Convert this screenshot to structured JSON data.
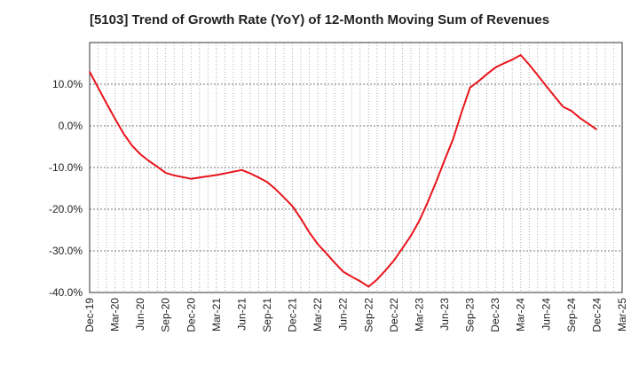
{
  "chart_data": {
    "type": "line",
    "title": "[5103]  Trend of Growth Rate (YoY) of 12-Month Moving Sum of Revenues",
    "xlabel": "",
    "ylabel": "",
    "ylim": [
      -40,
      20
    ],
    "grid": true,
    "legend": "none",
    "x_ticks": [
      "Dec-19",
      "Mar-20",
      "Jun-20",
      "Sep-20",
      "Dec-20",
      "Mar-21",
      "Jun-21",
      "Sep-21",
      "Dec-21",
      "Mar-22",
      "Jun-22",
      "Sep-22",
      "Dec-22",
      "Mar-23",
      "Jun-23",
      "Sep-23",
      "Dec-23",
      "Mar-24",
      "Jun-24",
      "Sep-24",
      "Dec-24",
      "Mar-25"
    ],
    "y_ticks": [
      -40,
      -30,
      -20,
      -10,
      0,
      10
    ],
    "y_tick_labels": [
      "-40.0%",
      "-30.0%",
      "-20.0%",
      "-10.0%",
      "0.0%",
      "10.0%"
    ],
    "series": [
      {
        "color": "#e8141b",
        "x": [
          "Dec-19",
          "Jan-20",
          "Feb-20",
          "Mar-20",
          "Apr-20",
          "May-20",
          "Jun-20",
          "Jul-20",
          "Aug-20",
          "Sep-20",
          "Oct-20",
          "Nov-20",
          "Dec-20",
          "Jan-21",
          "Feb-21",
          "Mar-21",
          "Apr-21",
          "May-21",
          "Jun-21",
          "Jul-21",
          "Aug-21",
          "Sep-21",
          "Oct-21",
          "Nov-21",
          "Dec-21",
          "Jan-22",
          "Feb-22",
          "Mar-22",
          "Apr-22",
          "May-22",
          "Jun-22",
          "Jul-22",
          "Aug-22",
          "Sep-22",
          "Oct-22",
          "Nov-22",
          "Dec-22",
          "Jan-23",
          "Feb-23",
          "Mar-23",
          "Apr-23",
          "May-23",
          "Jun-23",
          "Jul-23",
          "Aug-23",
          "Sep-23",
          "Oct-23",
          "Nov-23",
          "Dec-23",
          "Jan-24",
          "Feb-24",
          "Mar-24",
          "Apr-24",
          "May-24",
          "Jun-24",
          "Jul-24",
          "Aug-24",
          "Sep-24",
          "Oct-24",
          "Nov-24",
          "Dec-24"
        ],
        "values": [
          13.0,
          9.2,
          5.4,
          1.7,
          -1.8,
          -4.7,
          -6.8,
          -8.4,
          -9.8,
          -11.3,
          -11.9,
          -12.3,
          -12.7,
          -12.4,
          -12.1,
          -11.8,
          -11.4,
          -11.0,
          -10.6,
          -11.4,
          -12.4,
          -13.5,
          -15.2,
          -17.2,
          -19.3,
          -22.3,
          -25.6,
          -28.4,
          -30.6,
          -32.9,
          -35.0,
          -36.2,
          -37.3,
          -38.6,
          -36.9,
          -34.7,
          -32.3,
          -29.4,
          -26.4,
          -22.8,
          -18.3,
          -13.4,
          -8.2,
          -3.2,
          3.2,
          9.2,
          10.7,
          12.4,
          14.0,
          15.0,
          15.9,
          17.0,
          14.7,
          12.2,
          9.6,
          7.1,
          4.6,
          3.6,
          1.9,
          0.5,
          -0.9
        ]
      }
    ]
  }
}
